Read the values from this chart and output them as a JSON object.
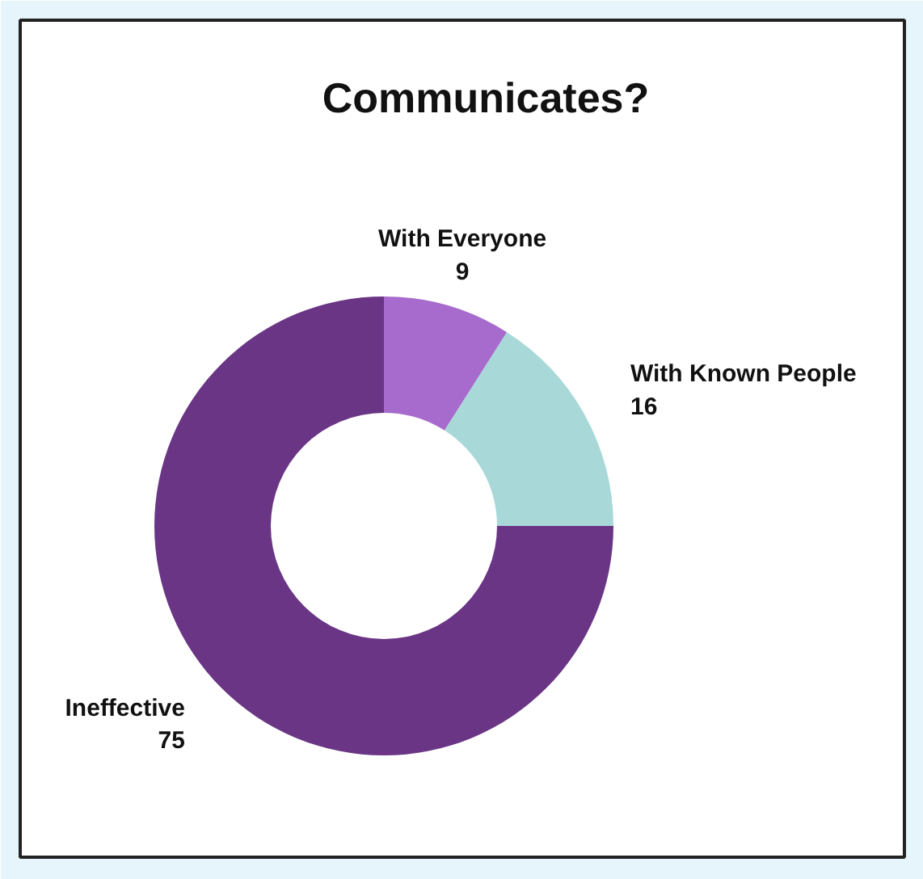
{
  "chart_data": {
    "type": "donut",
    "title": "Communicates?",
    "categories": [
      "With Everyone",
      "With Known People",
      "Ineffective"
    ],
    "values": [
      9,
      16,
      75
    ],
    "colors": [
      "#a66bcc",
      "#a8d8d8",
      "#6a3585"
    ],
    "data_labels": true
  }
}
